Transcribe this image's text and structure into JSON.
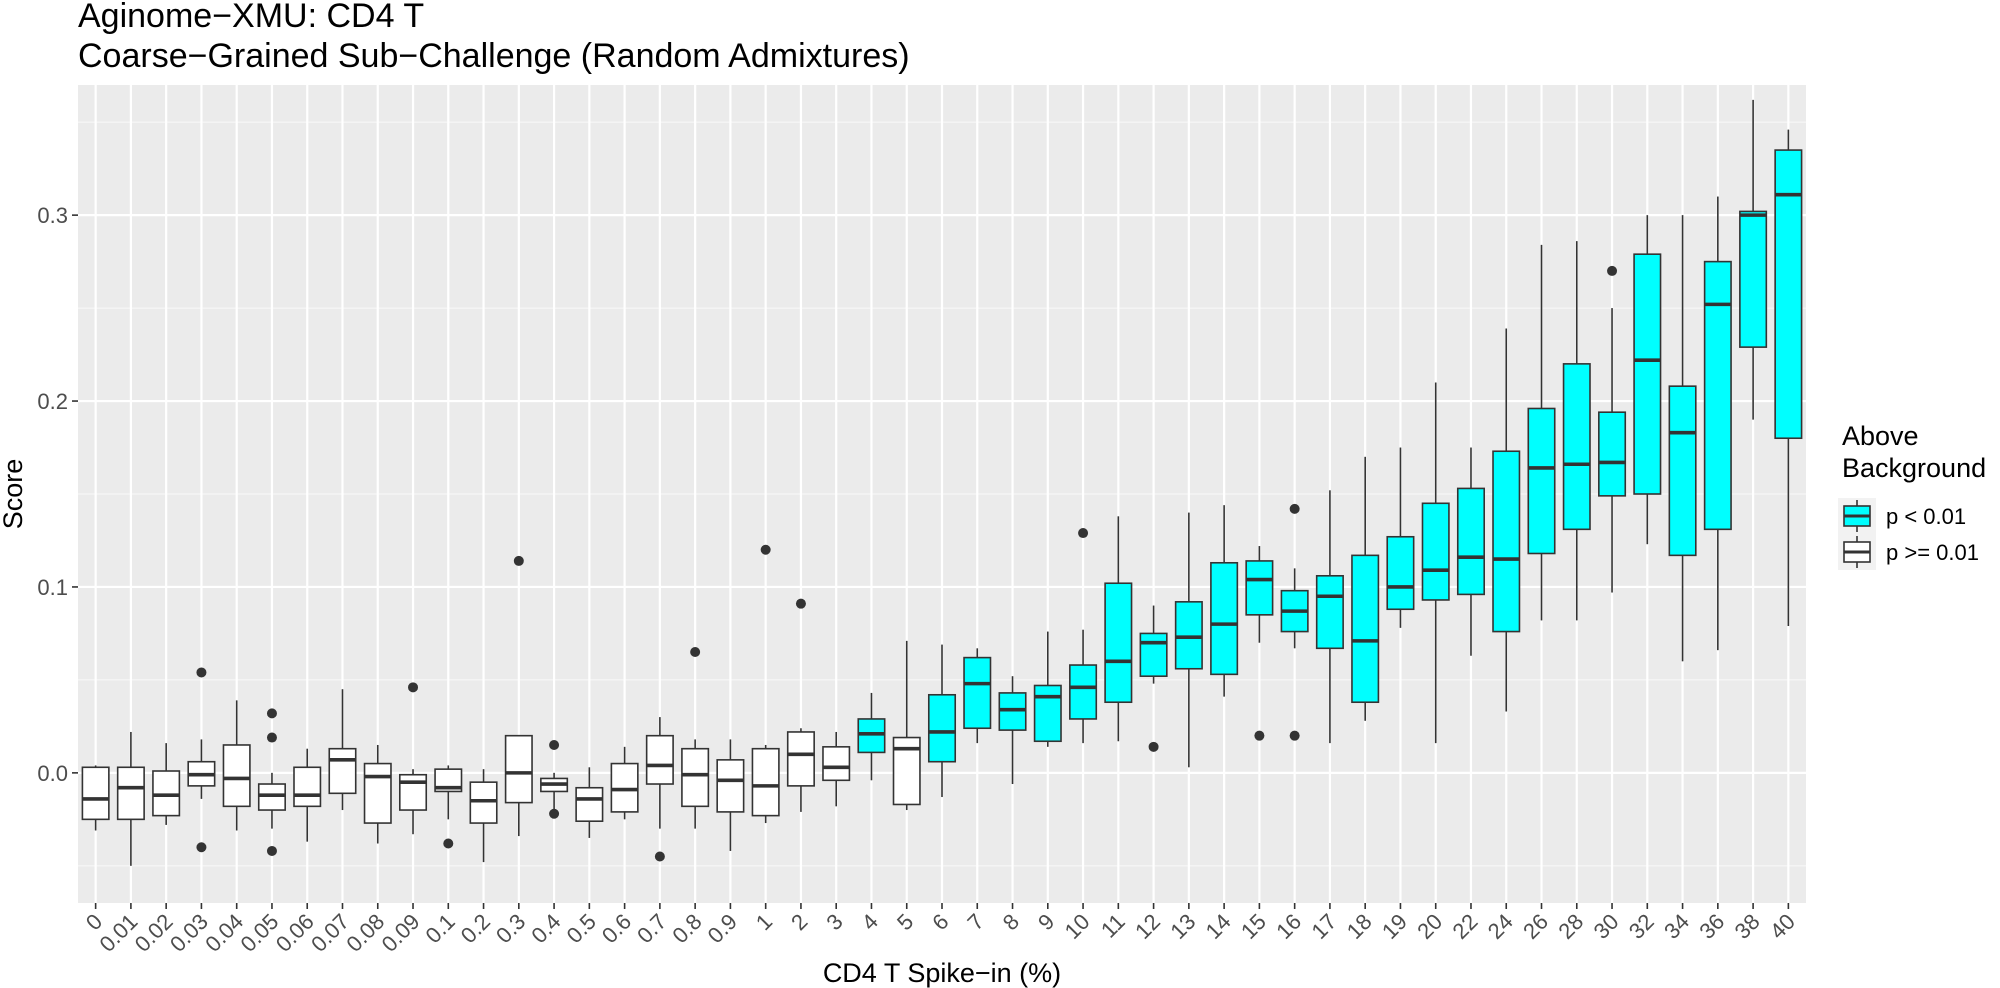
{
  "chart_data": {
    "type": "boxplot",
    "title": "Aginome−XMU: CD4 T",
    "subtitle": "Coarse−Grained Sub−Challenge (Random Admixtures)",
    "xlabel": "CD4 T Spike−in (%)",
    "ylabel": "Score",
    "ylim": [
      -0.07,
      0.37
    ],
    "yticks": [
      0.0,
      0.1,
      0.2,
      0.3
    ],
    "ytick_labels": [
      "0.0",
      "0.1",
      "0.2",
      "0.3"
    ],
    "grid": true,
    "legend": {
      "title_lines": [
        "Above",
        "Background"
      ],
      "placement": "right",
      "entries": [
        {
          "label": "p < 0.01",
          "color": "#00ffff"
        },
        {
          "label": "p >= 0.01",
          "color": "#ffffff"
        }
      ]
    },
    "colors": {
      "panel_background": "#ebebeb",
      "grid_major": "#ffffff",
      "box_outline": "#333333",
      "significant_fill": "#00ffff",
      "not_significant_fill": "#ffffff"
    },
    "categories": [
      "0",
      "0.01",
      "0.02",
      "0.03",
      "0.04",
      "0.05",
      "0.06",
      "0.07",
      "0.08",
      "0.09",
      "0.1",
      "0.2",
      "0.3",
      "0.4",
      "0.5",
      "0.6",
      "0.7",
      "0.8",
      "0.9",
      "1",
      "2",
      "3",
      "4",
      "5",
      "6",
      "7",
      "8",
      "9",
      "10",
      "11",
      "12",
      "13",
      "14",
      "15",
      "16",
      "17",
      "18",
      "19",
      "20",
      "22",
      "24",
      "26",
      "28",
      "30",
      "32",
      "34",
      "36",
      "38",
      "40"
    ],
    "boxes": [
      {
        "min": -0.031,
        "q1": -0.025,
        "median": -0.014,
        "q3": 0.003,
        "max": 0.004,
        "significant": false,
        "outliers": []
      },
      {
        "min": -0.05,
        "q1": -0.025,
        "median": -0.008,
        "q3": 0.003,
        "max": 0.022,
        "significant": false,
        "outliers": []
      },
      {
        "min": -0.028,
        "q1": -0.023,
        "median": -0.012,
        "q3": 0.001,
        "max": 0.016,
        "significant": false,
        "outliers": []
      },
      {
        "min": -0.014,
        "q1": -0.007,
        "median": -0.001,
        "q3": 0.006,
        "max": 0.018,
        "significant": false,
        "outliers": [
          0.054,
          -0.04
        ]
      },
      {
        "min": -0.031,
        "q1": -0.018,
        "median": -0.003,
        "q3": 0.015,
        "max": 0.039,
        "significant": false,
        "outliers": []
      },
      {
        "min": -0.03,
        "q1": -0.02,
        "median": -0.012,
        "q3": -0.006,
        "max": 0.0,
        "significant": false,
        "outliers": [
          0.032,
          0.019,
          -0.042
        ]
      },
      {
        "min": -0.037,
        "q1": -0.018,
        "median": -0.012,
        "q3": 0.003,
        "max": 0.013,
        "significant": false,
        "outliers": []
      },
      {
        "min": -0.02,
        "q1": -0.011,
        "median": 0.007,
        "q3": 0.013,
        "max": 0.045,
        "significant": false,
        "outliers": []
      },
      {
        "min": -0.038,
        "q1": -0.027,
        "median": -0.002,
        "q3": 0.005,
        "max": 0.015,
        "significant": false,
        "outliers": []
      },
      {
        "min": -0.033,
        "q1": -0.02,
        "median": -0.005,
        "q3": -0.001,
        "max": 0.002,
        "significant": false,
        "outliers": [
          0.046
        ]
      },
      {
        "min": -0.025,
        "q1": -0.01,
        "median": -0.008,
        "q3": 0.002,
        "max": 0.004,
        "significant": false,
        "outliers": [
          -0.038
        ]
      },
      {
        "min": -0.048,
        "q1": -0.027,
        "median": -0.015,
        "q3": -0.005,
        "max": 0.002,
        "significant": false,
        "outliers": []
      },
      {
        "min": -0.034,
        "q1": -0.016,
        "median": 0.0,
        "q3": 0.02,
        "max": 0.02,
        "significant": false,
        "outliers": [
          0.114
        ]
      },
      {
        "min": -0.02,
        "q1": -0.01,
        "median": -0.006,
        "q3": -0.003,
        "max": 0.0,
        "significant": false,
        "outliers": [
          0.015,
          -0.022
        ]
      },
      {
        "min": -0.035,
        "q1": -0.026,
        "median": -0.014,
        "q3": -0.008,
        "max": 0.003,
        "significant": false,
        "outliers": []
      },
      {
        "min": -0.025,
        "q1": -0.021,
        "median": -0.009,
        "q3": 0.005,
        "max": 0.014,
        "significant": false,
        "outliers": []
      },
      {
        "min": -0.03,
        "q1": -0.006,
        "median": 0.004,
        "q3": 0.02,
        "max": 0.03,
        "significant": false,
        "outliers": [
          -0.045
        ]
      },
      {
        "min": -0.03,
        "q1": -0.018,
        "median": -0.001,
        "q3": 0.013,
        "max": 0.018,
        "significant": false,
        "outliers": [
          0.065
        ]
      },
      {
        "min": -0.042,
        "q1": -0.021,
        "median": -0.004,
        "q3": 0.007,
        "max": 0.018,
        "significant": false,
        "outliers": []
      },
      {
        "min": -0.027,
        "q1": -0.023,
        "median": -0.007,
        "q3": 0.013,
        "max": 0.015,
        "significant": false,
        "outliers": [
          0.12
        ]
      },
      {
        "min": -0.021,
        "q1": -0.007,
        "median": 0.01,
        "q3": 0.022,
        "max": 0.024,
        "significant": false,
        "outliers": [
          0.091
        ]
      },
      {
        "min": -0.018,
        "q1": -0.004,
        "median": 0.003,
        "q3": 0.014,
        "max": 0.022,
        "significant": false,
        "outliers": []
      },
      {
        "min": -0.004,
        "q1": 0.011,
        "median": 0.021,
        "q3": 0.029,
        "max": 0.043,
        "significant": true,
        "outliers": []
      },
      {
        "min": -0.02,
        "q1": -0.017,
        "median": 0.013,
        "q3": 0.019,
        "max": 0.071,
        "significant": false,
        "outliers": []
      },
      {
        "min": -0.013,
        "q1": 0.006,
        "median": 0.022,
        "q3": 0.042,
        "max": 0.069,
        "significant": true,
        "outliers": []
      },
      {
        "min": 0.016,
        "q1": 0.024,
        "median": 0.048,
        "q3": 0.062,
        "max": 0.067,
        "significant": true,
        "outliers": []
      },
      {
        "min": -0.006,
        "q1": 0.023,
        "median": 0.034,
        "q3": 0.043,
        "max": 0.052,
        "significant": true,
        "outliers": []
      },
      {
        "min": 0.014,
        "q1": 0.017,
        "median": 0.041,
        "q3": 0.047,
        "max": 0.076,
        "significant": true,
        "outliers": []
      },
      {
        "min": 0.016,
        "q1": 0.029,
        "median": 0.046,
        "q3": 0.058,
        "max": 0.077,
        "significant": true,
        "outliers": [
          0.129
        ]
      },
      {
        "min": 0.017,
        "q1": 0.038,
        "median": 0.06,
        "q3": 0.102,
        "max": 0.138,
        "significant": true,
        "outliers": []
      },
      {
        "min": 0.048,
        "q1": 0.052,
        "median": 0.07,
        "q3": 0.075,
        "max": 0.09,
        "significant": true,
        "outliers": [
          0.014
        ]
      },
      {
        "min": 0.003,
        "q1": 0.056,
        "median": 0.073,
        "q3": 0.092,
        "max": 0.14,
        "significant": true,
        "outliers": []
      },
      {
        "min": 0.041,
        "q1": 0.053,
        "median": 0.08,
        "q3": 0.113,
        "max": 0.144,
        "significant": true,
        "outliers": []
      },
      {
        "min": 0.07,
        "q1": 0.085,
        "median": 0.104,
        "q3": 0.114,
        "max": 0.122,
        "significant": true,
        "outliers": [
          0.02
        ]
      },
      {
        "min": 0.067,
        "q1": 0.076,
        "median": 0.087,
        "q3": 0.098,
        "max": 0.11,
        "significant": true,
        "outliers": [
          0.142,
          0.02
        ]
      },
      {
        "min": 0.016,
        "q1": 0.067,
        "median": 0.095,
        "q3": 0.106,
        "max": 0.152,
        "significant": true,
        "outliers": []
      },
      {
        "min": 0.028,
        "q1": 0.038,
        "median": 0.071,
        "q3": 0.117,
        "max": 0.17,
        "significant": true,
        "outliers": []
      },
      {
        "min": 0.078,
        "q1": 0.088,
        "median": 0.1,
        "q3": 0.127,
        "max": 0.175,
        "significant": true,
        "outliers": []
      },
      {
        "min": 0.016,
        "q1": 0.093,
        "median": 0.109,
        "q3": 0.145,
        "max": 0.21,
        "significant": true,
        "outliers": []
      },
      {
        "min": 0.063,
        "q1": 0.096,
        "median": 0.116,
        "q3": 0.153,
        "max": 0.175,
        "significant": true,
        "outliers": []
      },
      {
        "min": 0.033,
        "q1": 0.076,
        "median": 0.115,
        "q3": 0.173,
        "max": 0.239,
        "significant": true,
        "outliers": []
      },
      {
        "min": 0.082,
        "q1": 0.118,
        "median": 0.164,
        "q3": 0.196,
        "max": 0.284,
        "significant": true,
        "outliers": []
      },
      {
        "min": 0.082,
        "q1": 0.131,
        "median": 0.166,
        "q3": 0.22,
        "max": 0.286,
        "significant": true,
        "outliers": []
      },
      {
        "min": 0.097,
        "q1": 0.149,
        "median": 0.167,
        "q3": 0.194,
        "max": 0.25,
        "significant": true,
        "outliers": [
          0.27
        ]
      },
      {
        "min": 0.123,
        "q1": 0.15,
        "median": 0.222,
        "q3": 0.279,
        "max": 0.3,
        "significant": true,
        "outliers": []
      },
      {
        "min": 0.06,
        "q1": 0.117,
        "median": 0.183,
        "q3": 0.208,
        "max": 0.3,
        "significant": true,
        "outliers": []
      },
      {
        "min": 0.066,
        "q1": 0.131,
        "median": 0.252,
        "q3": 0.275,
        "max": 0.31,
        "significant": true,
        "outliers": []
      },
      {
        "min": 0.19,
        "q1": 0.229,
        "median": 0.3,
        "q3": 0.302,
        "max": 0.362,
        "significant": true,
        "outliers": []
      },
      {
        "min": 0.079,
        "q1": 0.18,
        "median": 0.311,
        "q3": 0.335,
        "max": 0.346,
        "significant": true,
        "outliers": []
      }
    ]
  }
}
